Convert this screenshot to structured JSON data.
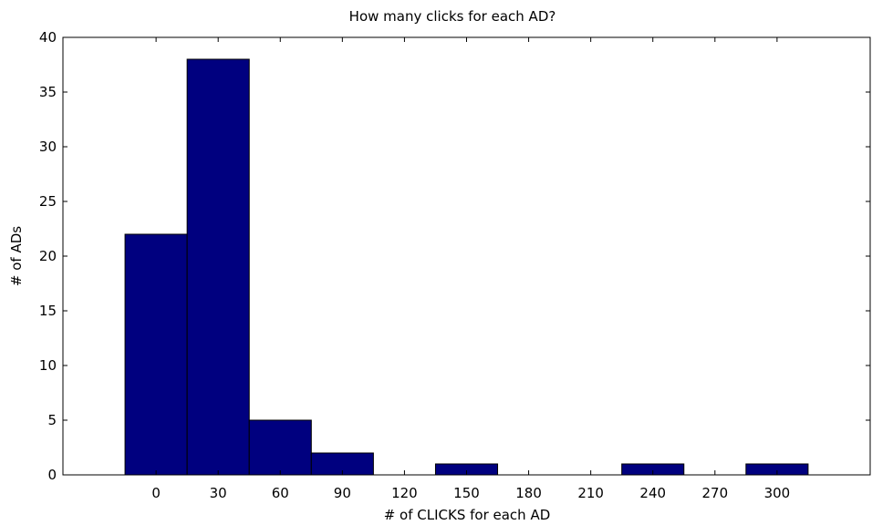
{
  "chart_data": {
    "type": "bar",
    "title": "How many clicks for each AD?",
    "xlabel": "# of CLICKS for each AD",
    "ylabel": "# of ADs",
    "categories": [
      "0",
      "30",
      "60",
      "90",
      "120",
      "150",
      "180",
      "210",
      "240",
      "270",
      "300"
    ],
    "values": [
      22,
      38,
      5,
      2,
      0,
      1,
      0,
      0,
      1,
      0,
      1
    ],
    "xlim": [
      -45,
      345
    ],
    "ylim": [
      0,
      40
    ],
    "yticks": [
      "0",
      "5",
      "10",
      "15",
      "20",
      "25",
      "30",
      "35",
      "40"
    ],
    "grid": false,
    "legend": "none",
    "bar_color": "#00007f",
    "edge_color": "#000000"
  }
}
